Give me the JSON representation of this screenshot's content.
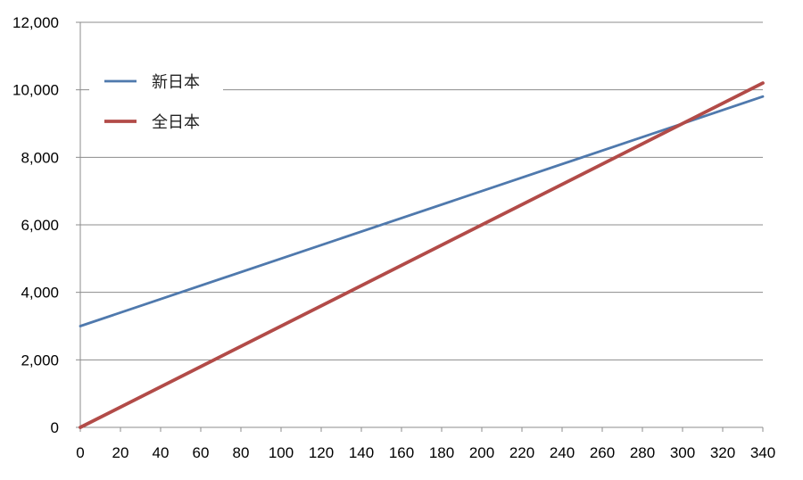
{
  "chart_data": {
    "type": "line",
    "title": "",
    "xlabel": "",
    "ylabel": "",
    "x_ticks": [
      0,
      20,
      40,
      60,
      80,
      100,
      120,
      140,
      160,
      180,
      200,
      220,
      240,
      260,
      280,
      300,
      320,
      340
    ],
    "y_ticks": [
      "0",
      "2,000",
      "4,000",
      "6,000",
      "8,000",
      "10,000",
      "12,000"
    ],
    "xlim": [
      0,
      340
    ],
    "ylim": [
      0,
      12000
    ],
    "grid": "horizontal",
    "legend_position": "top-left",
    "series": [
      {
        "name": "新日本",
        "color": "#4f79ad",
        "x": [
          0,
          340
        ],
        "values": [
          3000,
          9800
        ]
      },
      {
        "name": "全日本",
        "color": "#b24b48",
        "x": [
          0,
          340
        ],
        "values": [
          0,
          10200
        ]
      }
    ]
  }
}
